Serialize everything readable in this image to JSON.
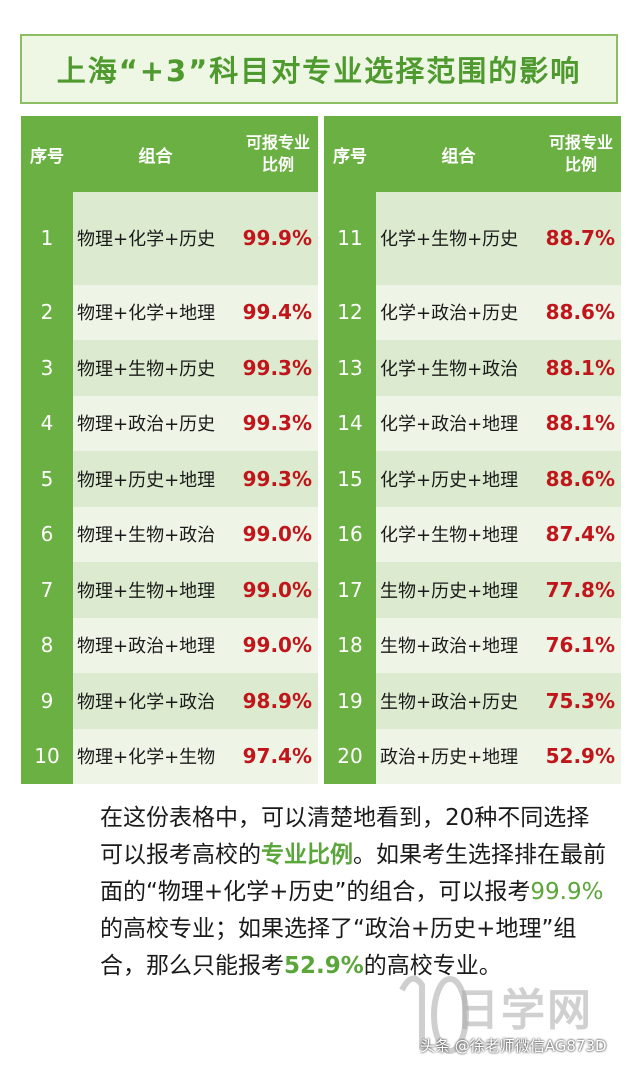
{
  "title": "上海“+3”科目对专业选择范围的影响",
  "headers": {
    "no": "序号",
    "combo": "组合",
    "pct": "可报专业比例"
  },
  "left_rows": [
    {
      "no": "1",
      "combo": "物理+化学+历史",
      "pct": "99.9%"
    },
    {
      "no": "2",
      "combo": "物理+化学+地理",
      "pct": "99.4%"
    },
    {
      "no": "3",
      "combo": "物理+生物+历史",
      "pct": "99.3%"
    },
    {
      "no": "4",
      "combo": "物理+政治+历史",
      "pct": "99.3%"
    },
    {
      "no": "5",
      "combo": "物理+历史+地理",
      "pct": "99.3%"
    },
    {
      "no": "6",
      "combo": "物理+生物+政治",
      "pct": "99.0%"
    },
    {
      "no": "7",
      "combo": "物理+生物+地理",
      "pct": "99.0%"
    },
    {
      "no": "8",
      "combo": "物理+政治+地理",
      "pct": "99.0%"
    },
    {
      "no": "9",
      "combo": "物理+化学+政治",
      "pct": "98.9%"
    },
    {
      "no": "10",
      "combo": "物理+化学+生物",
      "pct": "97.4%"
    }
  ],
  "right_rows": [
    {
      "no": "11",
      "combo": "化学+生物+历史",
      "pct": "88.7%"
    },
    {
      "no": "12",
      "combo": "化学+政治+历史",
      "pct": "88.6%"
    },
    {
      "no": "13",
      "combo": "化学+生物+政治",
      "pct": "88.1%"
    },
    {
      "no": "14",
      "combo": "化学+政治+地理",
      "pct": "88.1%"
    },
    {
      "no": "15",
      "combo": "化学+历史+地理",
      "pct": "88.6%"
    },
    {
      "no": "16",
      "combo": "化学+生物+地理",
      "pct": "87.4%"
    },
    {
      "no": "17",
      "combo": "生物+历史+地理",
      "pct": "77.8%"
    },
    {
      "no": "18",
      "combo": "生物+政治+地理",
      "pct": "76.1%"
    },
    {
      "no": "19",
      "combo": "生物+政治+历史",
      "pct": "75.3%"
    },
    {
      "no": "20",
      "combo": "政治+历史+地理",
      "pct": "52.9%"
    }
  ],
  "paragraph": {
    "p1": "在这份表格中，可以清楚地看到，20种不同选择可以报考高校的",
    "p1_hl": "专业比例",
    "p2": "。如果考生选择排在最前面的“物理+化学+历史”的组合，可以报考",
    "p2_hl": "99.9%",
    "p3": "的高校专业；如果选择了“政治+历史+地理”组合，那么只能报考",
    "p3_hl": "52.9%",
    "p4": "的高校专业。"
  },
  "watermark": {
    "text": "日学网"
  },
  "credit": "头条 @徐老师微信AG873D",
  "colors": {
    "header_green": "#6bb043",
    "title_green": "#4f9a2f",
    "pct_red": "#c0161b"
  }
}
